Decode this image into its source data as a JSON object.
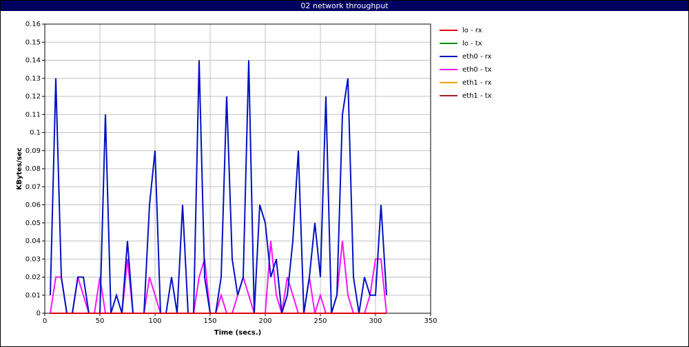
{
  "chart_data": {
    "type": "line",
    "title": "02 network throughput",
    "xlabel": "Time (secs.)",
    "ylabel": "KBytes/sec",
    "x": [
      5,
      10,
      15,
      20,
      25,
      30,
      35,
      40,
      45,
      50,
      55,
      60,
      65,
      70,
      75,
      80,
      85,
      90,
      95,
      100,
      105,
      110,
      115,
      120,
      125,
      130,
      135,
      140,
      145,
      150,
      155,
      160,
      165,
      170,
      175,
      180,
      185,
      190,
      195,
      200,
      205,
      210,
      215,
      220,
      225,
      230,
      235,
      240,
      245,
      250,
      255,
      260,
      265,
      270,
      275,
      280,
      285,
      290,
      295,
      300,
      305,
      310
    ],
    "xlim": [
      0,
      350
    ],
    "xticks": [
      0,
      50,
      100,
      150,
      200,
      250,
      300,
      350
    ],
    "ylim": [
      0,
      0.16
    ],
    "yticks": [
      0,
      0.01,
      0.02,
      0.03,
      0.04,
      0.05,
      0.06,
      0.07,
      0.08,
      0.09,
      0.1,
      0.11,
      0.12,
      0.13,
      0.14,
      0.15,
      0.16
    ],
    "grid": true,
    "legend": "right",
    "series": [
      {
        "name": "lo - rx",
        "color": "#e00000",
        "values": [
          0,
          0,
          0,
          0,
          0,
          0,
          0,
          0,
          0,
          0,
          0,
          0,
          0,
          0,
          0,
          0,
          0,
          0,
          0,
          0,
          0,
          0,
          0,
          0,
          0,
          0,
          0,
          0,
          0,
          0,
          0,
          0,
          0,
          0,
          0,
          0,
          0,
          0,
          0,
          0,
          0,
          0,
          0,
          0,
          0,
          0,
          0,
          0,
          0,
          0,
          0,
          0,
          0,
          0,
          0,
          0,
          0,
          0,
          0,
          0,
          0,
          0
        ]
      },
      {
        "name": "lo - tx",
        "color": "#009000",
        "values": [
          0,
          0,
          0,
          0,
          0,
          0,
          0,
          0,
          0,
          0,
          0,
          0,
          0,
          0,
          0,
          0,
          0,
          0,
          0,
          0,
          0,
          0,
          0,
          0,
          0,
          0,
          0,
          0,
          0,
          0,
          0,
          0,
          0,
          0,
          0,
          0,
          0,
          0,
          0,
          0,
          0,
          0,
          0,
          0,
          0,
          0,
          0,
          0,
          0,
          0,
          0,
          0,
          0,
          0,
          0,
          0,
          0,
          0,
          0,
          0,
          0,
          0
        ]
      },
      {
        "name": "eth0 - rx",
        "color": "#0010c0",
        "values": [
          0.01,
          0.13,
          0.02,
          0,
          0,
          0.02,
          0.02,
          0,
          0,
          0,
          0.11,
          0,
          0.01,
          0,
          0.04,
          0,
          0,
          0,
          0.06,
          0.09,
          0,
          0,
          0.02,
          0,
          0.06,
          0,
          0,
          0.14,
          0.02,
          0,
          0,
          0.02,
          0.12,
          0.03,
          0.01,
          0.02,
          0.14,
          0,
          0.06,
          0.05,
          0.02,
          0.03,
          0,
          0.01,
          0.04,
          0.09,
          0,
          0.02,
          0.05,
          0.02,
          0.12,
          0,
          0.01,
          0.11,
          0.13,
          0.02,
          0,
          0.02,
          0.01,
          0.01,
          0.06,
          0.01
        ]
      },
      {
        "name": "eth0 - tx",
        "color": "#ff10ff",
        "values": [
          0,
          0.02,
          0.02,
          0,
          0,
          0.02,
          0.01,
          0,
          0,
          0.02,
          0,
          0,
          0,
          0,
          0.03,
          0,
          0,
          0,
          0.02,
          0.01,
          0,
          0,
          0,
          0,
          0,
          0,
          0,
          0.02,
          0.03,
          0,
          0,
          0.01,
          0,
          0,
          0.01,
          0.02,
          0.01,
          0,
          0,
          0,
          0.04,
          0.01,
          0,
          0.02,
          0.01,
          0,
          0,
          0.02,
          0,
          0.01,
          0,
          0,
          0.01,
          0.04,
          0.01,
          0,
          0,
          0,
          0.01,
          0.03,
          0.03,
          0
        ]
      },
      {
        "name": "eth1 - rx",
        "color": "#f0a000",
        "values": [
          0,
          0,
          0,
          0,
          0,
          0,
          0,
          0,
          0,
          0,
          0,
          0,
          0,
          0,
          0,
          0,
          0,
          0,
          0,
          0,
          0,
          0,
          0,
          0,
          0,
          0,
          0,
          0,
          0,
          0,
          0,
          0,
          0,
          0,
          0,
          0,
          0,
          0,
          0,
          0,
          0,
          0,
          0,
          0,
          0,
          0,
          0,
          0,
          0,
          0,
          0,
          0,
          0,
          0,
          0,
          0,
          0,
          0,
          0,
          0,
          0,
          0
        ]
      },
      {
        "name": "eth1 - tx",
        "color": "#a02020",
        "values": [
          0,
          0,
          0,
          0,
          0,
          0,
          0,
          0,
          0,
          0,
          0,
          0,
          0,
          0,
          0,
          0,
          0,
          0,
          0,
          0,
          0,
          0,
          0,
          0,
          0,
          0,
          0,
          0,
          0,
          0,
          0,
          0,
          0,
          0,
          0,
          0,
          0,
          0,
          0,
          0,
          0,
          0,
          0,
          0,
          0,
          0,
          0,
          0,
          0,
          0,
          0,
          0,
          0,
          0,
          0,
          0,
          0,
          0,
          0,
          0,
          0,
          0
        ]
      }
    ]
  }
}
